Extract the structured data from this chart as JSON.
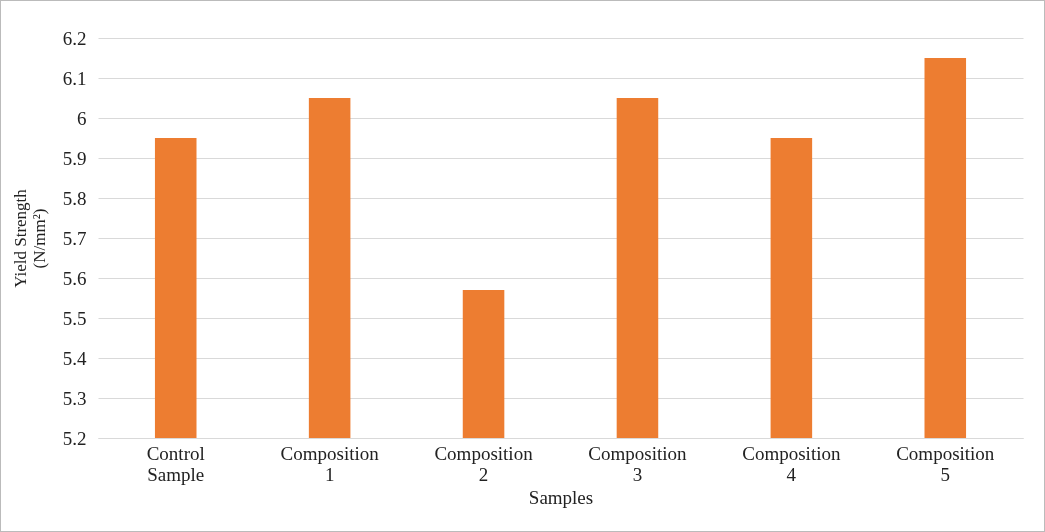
{
  "chart_data": {
    "type": "bar",
    "xlabel": "Samples",
    "ylabel": "Yield Strength\n(N/mm²)",
    "categories": [
      "Control\nSample",
      "Composition\n1",
      "Composition\n2",
      "Composition\n3",
      "Composition\n4",
      "Composition\n5"
    ],
    "values": [
      5.95,
      6.05,
      5.57,
      6.05,
      5.95,
      6.15
    ],
    "color": "#ed7d31",
    "ylim": [
      5.2,
      6.2
    ],
    "yticks": [
      5.2,
      5.3,
      5.4,
      5.5,
      5.6,
      5.7,
      5.8,
      5.9,
      6,
      6.1,
      6.2
    ],
    "grid": "y"
  }
}
